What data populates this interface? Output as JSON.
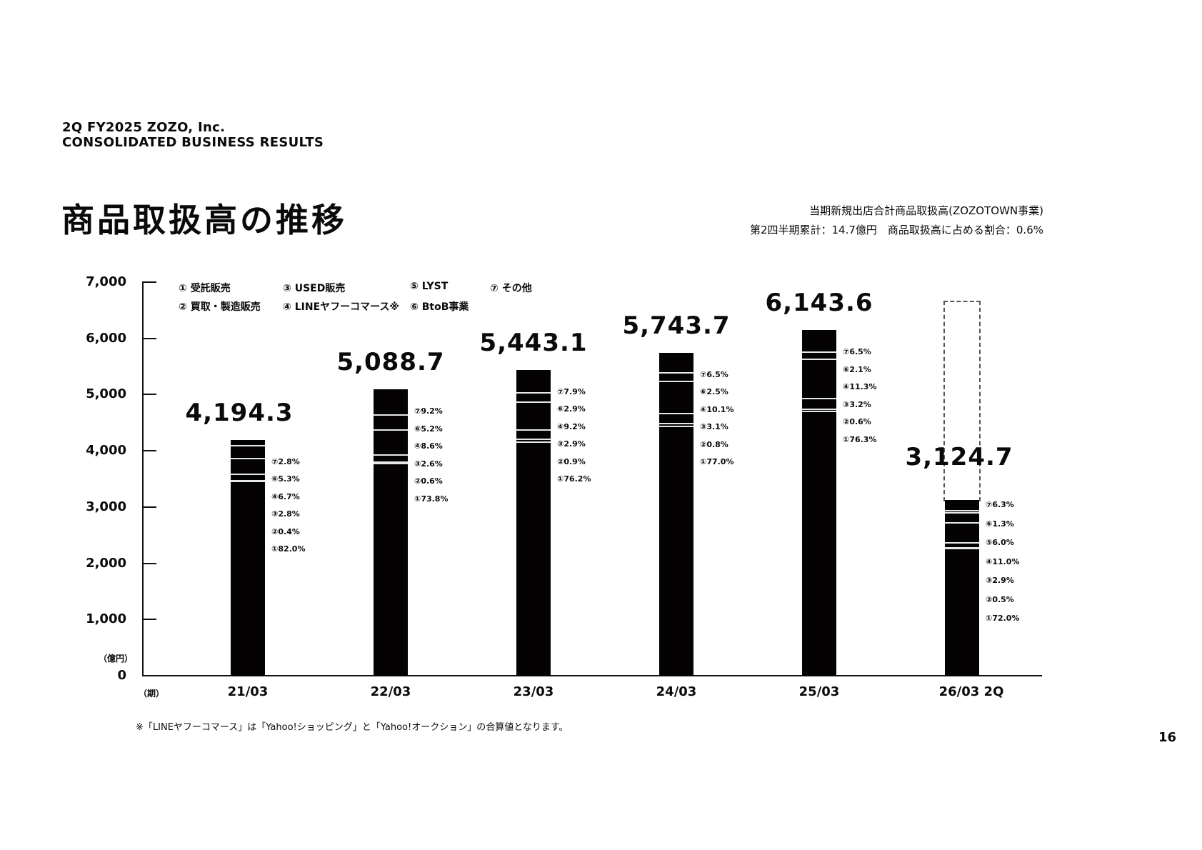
{
  "header": {
    "company_line1": "2Q FY2025 ZOZO, Inc.",
    "company_line2": "CONSOLIDATED BUSINESS RESULTS",
    "title": "商品取扱高の推移"
  },
  "note": {
    "line1": "当期新規出店合計商品取扱高(ZOZOTOWN事業)",
    "line2": "第2四半期累計：14.7億円　商品取扱高に占める割合：0.6%"
  },
  "legend": [
    {
      "num": "①",
      "label": "受託販売"
    },
    {
      "num": "②",
      "label": "買取・製造販売"
    },
    {
      "num": "③",
      "label": "USED販売"
    },
    {
      "num": "④",
      "label": "LINEヤフーコマース※"
    },
    {
      "num": "⑤",
      "label": "LYST"
    },
    {
      "num": "⑥",
      "label": "BtoB事業"
    },
    {
      "num": "⑦",
      "label": "その他"
    }
  ],
  "y_unit": "（億円）",
  "x_unit": "（期）",
  "footnote": "※「LINEヤフーコマース」は「Yahoo!ショッピング」と「Yahoo!オークション」の合算値となります。",
  "page_number": "16",
  "chart_data": {
    "type": "bar",
    "stacked": true,
    "title": "商品取扱高の推移",
    "xlabel": "（期）",
    "ylabel": "（億円）",
    "ylim": [
      0,
      7000
    ],
    "yticks": [
      "0",
      "1,000",
      "2,000",
      "3,000",
      "4,000",
      "5,000",
      "6,000",
      "7,000"
    ],
    "grid": false,
    "legend_position": "top-left",
    "categories": [
      "21/03",
      "22/03",
      "23/03",
      "24/03",
      "25/03",
      "26/03 2Q"
    ],
    "totals": [
      4194.3,
      5088.7,
      5443.1,
      5743.7,
      6143.6,
      3124.7
    ],
    "total_labels": [
      "4,194.3",
      "5,088.7",
      "5,443.1",
      "5,743.7",
      "6,143.6",
      "3,124.7"
    ],
    "series_share_pct": [
      {
        "name": "① 受託販売",
        "values": [
          82.0,
          73.8,
          76.2,
          77.0,
          76.3,
          72.0
        ]
      },
      {
        "name": "② 買取・製造販売",
        "values": [
          0.4,
          0.6,
          0.9,
          0.8,
          0.6,
          0.5
        ]
      },
      {
        "name": "③ USED販売",
        "values": [
          2.8,
          2.6,
          2.9,
          3.1,
          3.2,
          2.9
        ]
      },
      {
        "name": "④ LINEヤフーコマース",
        "values": [
          6.7,
          8.6,
          9.2,
          10.1,
          11.3,
          11.0
        ]
      },
      {
        "name": "⑤ LYST",
        "values": [
          null,
          null,
          null,
          null,
          null,
          6.0
        ]
      },
      {
        "name": "⑥ BtoB事業",
        "values": [
          5.3,
          5.2,
          2.9,
          2.5,
          2.1,
          1.3
        ]
      },
      {
        "name": "⑦ その他",
        "values": [
          2.8,
          9.2,
          7.9,
          6.5,
          6.5,
          6.3
        ]
      }
    ],
    "bar_labels": [
      [
        "⑦2.8%",
        "⑥5.3%",
        "④6.7%",
        "③2.8%",
        "②0.4%",
        "①82.0%"
      ],
      [
        "⑦9.2%",
        "⑥5.2%",
        "④8.6%",
        "③2.6%",
        "②0.6%",
        "①73.8%"
      ],
      [
        "⑦7.9%",
        "⑥2.9%",
        "④9.2%",
        "③2.9%",
        "②0.9%",
        "①76.2%"
      ],
      [
        "⑦6.5%",
        "⑥2.5%",
        "④10.1%",
        "③3.1%",
        "②0.8%",
        "①77.0%"
      ],
      [
        "⑦6.5%",
        "⑥2.1%",
        "④11.3%",
        "③3.2%",
        "②0.6%",
        "①76.3%"
      ],
      [
        "⑦6.3%",
        "⑥1.3%",
        "⑤6.0%",
        "④11.0%",
        "③2.9%",
        "②0.5%",
        "①72.0%"
      ]
    ],
    "annotations": [
      "26/03 2Q bar shown with dashed outline extending to ~6,600 (full-year placeholder)"
    ]
  }
}
